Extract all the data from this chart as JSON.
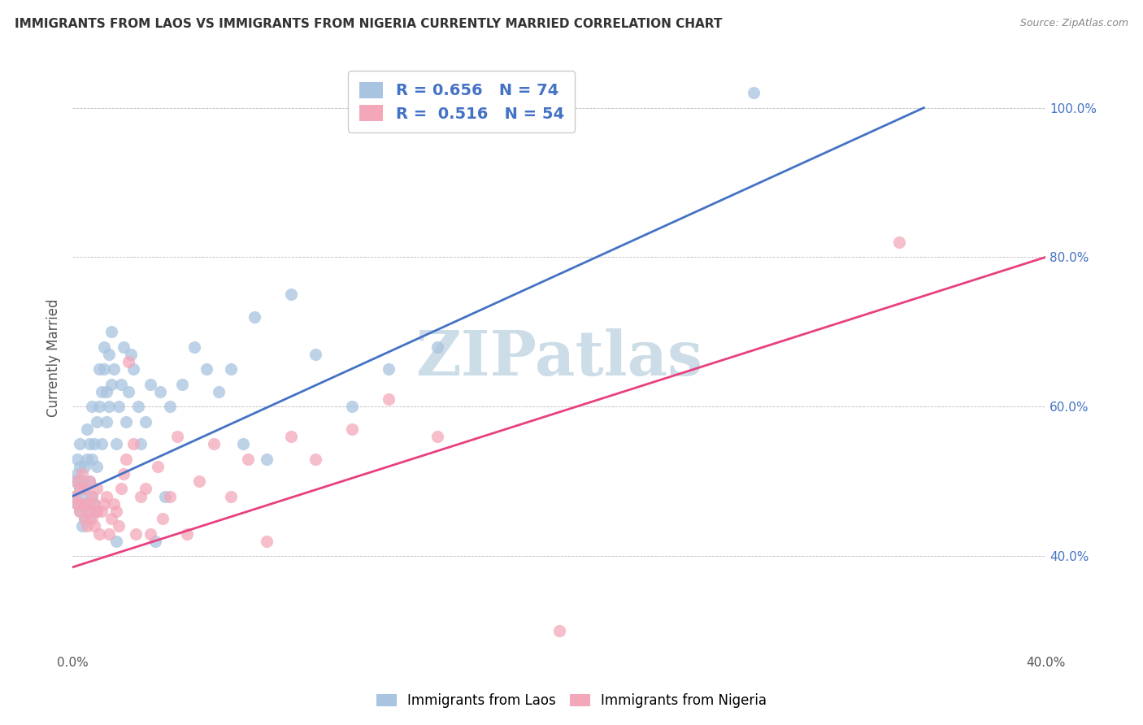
{
  "title": "IMMIGRANTS FROM LAOS VS IMMIGRANTS FROM NIGERIA CURRENTLY MARRIED CORRELATION CHART",
  "source": "Source: ZipAtlas.com",
  "ylabel": "Currently Married",
  "x_min": 0.0,
  "x_max": 0.4,
  "y_min": 0.27,
  "y_max": 1.06,
  "y_ticks_right": [
    0.4,
    0.6,
    0.8,
    1.0
  ],
  "y_tick_labels_right": [
    "40.0%",
    "60.0%",
    "80.0%",
    "100.0%"
  ],
  "laos_color": "#a8c4e0",
  "nigeria_color": "#f4a7b9",
  "laos_line_color": "#4472c4",
  "nigeria_line_color": "#e84080",
  "laos_R": 0.656,
  "laos_N": 74,
  "nigeria_R": 0.516,
  "nigeria_N": 54,
  "watermark": "ZIPatlas",
  "watermark_color": "#ccdde8",
  "laos_line_x0": 0.0,
  "laos_line_y0": 0.48,
  "laos_line_x1": 0.35,
  "laos_line_y1": 1.0,
  "nigeria_line_x0": 0.0,
  "nigeria_line_y0": 0.385,
  "nigeria_line_x1": 0.4,
  "nigeria_line_y1": 0.8,
  "laos_x": [
    0.001,
    0.001,
    0.002,
    0.002,
    0.002,
    0.003,
    0.003,
    0.003,
    0.003,
    0.004,
    0.004,
    0.004,
    0.005,
    0.005,
    0.005,
    0.005,
    0.006,
    0.006,
    0.006,
    0.007,
    0.007,
    0.007,
    0.008,
    0.008,
    0.008,
    0.009,
    0.009,
    0.01,
    0.01,
    0.01,
    0.011,
    0.011,
    0.012,
    0.012,
    0.013,
    0.013,
    0.014,
    0.014,
    0.015,
    0.015,
    0.016,
    0.016,
    0.017,
    0.018,
    0.018,
    0.019,
    0.02,
    0.021,
    0.022,
    0.023,
    0.024,
    0.025,
    0.027,
    0.028,
    0.03,
    0.032,
    0.034,
    0.036,
    0.038,
    0.04,
    0.045,
    0.05,
    0.055,
    0.06,
    0.065,
    0.07,
    0.075,
    0.08,
    0.09,
    0.1,
    0.115,
    0.13,
    0.15,
    0.28
  ],
  "laos_y": [
    0.5,
    0.48,
    0.51,
    0.47,
    0.53,
    0.49,
    0.52,
    0.46,
    0.55,
    0.48,
    0.44,
    0.5,
    0.47,
    0.52,
    0.45,
    0.49,
    0.46,
    0.53,
    0.57,
    0.45,
    0.5,
    0.55,
    0.48,
    0.53,
    0.6,
    0.47,
    0.55,
    0.46,
    0.52,
    0.58,
    0.6,
    0.65,
    0.55,
    0.62,
    0.65,
    0.68,
    0.58,
    0.62,
    0.6,
    0.67,
    0.63,
    0.7,
    0.65,
    0.42,
    0.55,
    0.6,
    0.63,
    0.68,
    0.58,
    0.62,
    0.67,
    0.65,
    0.6,
    0.55,
    0.58,
    0.63,
    0.42,
    0.62,
    0.48,
    0.6,
    0.63,
    0.68,
    0.65,
    0.62,
    0.65,
    0.55,
    0.72,
    0.53,
    0.75,
    0.67,
    0.6,
    0.65,
    0.68,
    1.02
  ],
  "nigeria_x": [
    0.001,
    0.002,
    0.002,
    0.003,
    0.003,
    0.004,
    0.004,
    0.005,
    0.005,
    0.006,
    0.006,
    0.007,
    0.007,
    0.008,
    0.008,
    0.009,
    0.009,
    0.01,
    0.01,
    0.011,
    0.012,
    0.013,
    0.014,
    0.015,
    0.016,
    0.017,
    0.018,
    0.019,
    0.02,
    0.021,
    0.022,
    0.023,
    0.025,
    0.026,
    0.028,
    0.03,
    0.032,
    0.035,
    0.037,
    0.04,
    0.043,
    0.047,
    0.052,
    0.058,
    0.065,
    0.072,
    0.08,
    0.09,
    0.1,
    0.115,
    0.13,
    0.15,
    0.2,
    0.34
  ],
  "nigeria_y": [
    0.48,
    0.47,
    0.5,
    0.46,
    0.49,
    0.47,
    0.51,
    0.45,
    0.49,
    0.44,
    0.47,
    0.46,
    0.5,
    0.45,
    0.48,
    0.44,
    0.47,
    0.46,
    0.49,
    0.43,
    0.46,
    0.47,
    0.48,
    0.43,
    0.45,
    0.47,
    0.46,
    0.44,
    0.49,
    0.51,
    0.53,
    0.66,
    0.55,
    0.43,
    0.48,
    0.49,
    0.43,
    0.52,
    0.45,
    0.48,
    0.56,
    0.43,
    0.5,
    0.55,
    0.48,
    0.53,
    0.42,
    0.56,
    0.53,
    0.57,
    0.61,
    0.56,
    0.3,
    0.82
  ]
}
